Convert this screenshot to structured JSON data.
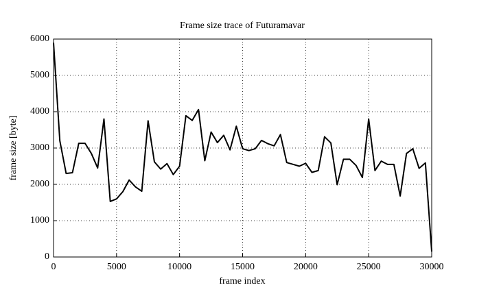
{
  "chart_data": {
    "type": "line",
    "title": "Frame size trace of Futuramavar",
    "x_label": "frame index",
    "y_label": "frame size [byte]",
    "x": [
      0,
      500,
      1000,
      1500,
      2000,
      2500,
      3000,
      3500,
      4000,
      4500,
      5000,
      5500,
      6000,
      6500,
      7000,
      7500,
      8000,
      8500,
      9000,
      9500,
      10000,
      10500,
      11000,
      11500,
      12000,
      12500,
      13000,
      13500,
      14000,
      14500,
      15000,
      15500,
      16000,
      16500,
      17000,
      17500,
      18000,
      18500,
      19000,
      19500,
      20000,
      20500,
      21000,
      21500,
      22000,
      22500,
      23000,
      23500,
      24000,
      24500,
      25000,
      25500,
      26000,
      26500,
      27000,
      27500,
      28000,
      28500,
      29000,
      29500,
      30000
    ],
    "values": [
      5900,
      3200,
      2300,
      2320,
      3130,
      3130,
      2850,
      2450,
      3800,
      1530,
      1600,
      1800,
      2120,
      1930,
      1810,
      3750,
      2620,
      2420,
      2570,
      2270,
      2500,
      3890,
      3760,
      4060,
      2650,
      3440,
      3150,
      3350,
      2950,
      3600,
      2980,
      2930,
      2980,
      3210,
      3120,
      3060,
      3370,
      2600,
      2550,
      2500,
      2580,
      2330,
      2380,
      3310,
      3140,
      1990,
      2690,
      2690,
      2520,
      2190,
      3800,
      2380,
      2640,
      2550,
      2550,
      1680,
      2850,
      2980,
      2440,
      2590,
      150
    ],
    "color": "#000000",
    "xlim": [
      0,
      30000
    ],
    "xticks": [
      0,
      5000,
      10000,
      15000,
      20000,
      25000,
      30000
    ],
    "ylim": [
      0,
      6000
    ],
    "yticks": [
      0,
      1000,
      2000,
      3000,
      4000,
      5000,
      6000
    ],
    "grid": true
  }
}
